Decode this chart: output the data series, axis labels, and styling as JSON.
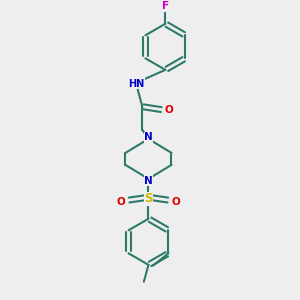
{
  "background_color": "#eeeeee",
  "bond_color": "#2d7a6a",
  "nitrogen_color": "#0000cc",
  "oxygen_color": "#dd0000",
  "sulfur_color": "#ccbb00",
  "fluorine_color": "#cc00cc",
  "lw": 1.5,
  "fs": 7.5,
  "fig_w": 3.0,
  "fig_h": 3.0,
  "dpi": 100,
  "xlim": [
    0,
    6
  ],
  "ylim": [
    0,
    9.5
  ]
}
